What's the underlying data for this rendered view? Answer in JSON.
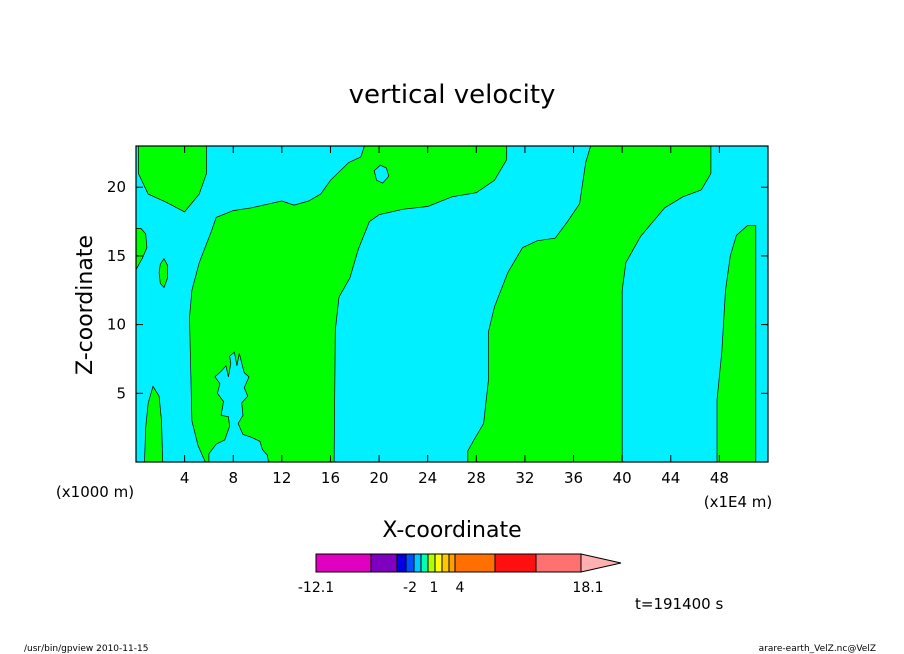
{
  "chart_data": {
    "type": "heatmap",
    "title": "vertical velocity",
    "xlabel": "X-coordinate",
    "ylabel": "Z-coordinate",
    "x_offset_label": "(x1000 m)",
    "x_scale_label": "(x1E4 m)",
    "xlim": [
      0,
      52
    ],
    "ylim": [
      0,
      23
    ],
    "xticks": [
      4,
      8,
      12,
      16,
      20,
      24,
      28,
      32,
      36,
      40,
      44,
      48
    ],
    "yticks": [
      5,
      10,
      15,
      20
    ],
    "background_color": "#00f0ff",
    "region_color": "#00ff00",
    "regions": [
      {
        "name": "green-band-left",
        "points": [
          [
            0.2,
            23
          ],
          [
            5.8,
            23
          ],
          [
            5.8,
            21
          ],
          [
            5.2,
            19.5
          ],
          [
            4,
            18.2
          ],
          [
            2.5,
            18.9
          ],
          [
            1,
            19.5
          ],
          [
            0.2,
            21
          ]
        ]
      },
      {
        "name": "green-band-1",
        "points": [
          [
            5.7,
            0
          ],
          [
            5.1,
            1.2
          ],
          [
            4.6,
            3
          ],
          [
            4.4,
            10.5
          ],
          [
            4.6,
            12.5
          ],
          [
            5.2,
            14.5
          ],
          [
            6.2,
            16.8
          ],
          [
            6.6,
            17.8
          ],
          [
            8,
            18.3
          ],
          [
            9.5,
            18.5
          ],
          [
            11,
            18.8
          ],
          [
            12,
            19.0
          ],
          [
            13,
            18.7
          ],
          [
            14.2,
            19.0
          ],
          [
            15.2,
            19.5
          ],
          [
            16,
            20.5
          ],
          [
            17.5,
            21.8
          ],
          [
            18.5,
            22.2
          ],
          [
            18.8,
            23
          ],
          [
            30.5,
            23
          ],
          [
            30.5,
            22
          ],
          [
            29.5,
            20.5
          ],
          [
            28,
            19.6
          ],
          [
            26,
            19.3
          ],
          [
            24,
            18.6
          ],
          [
            22,
            18.4
          ],
          [
            20,
            18.0
          ],
          [
            19.2,
            17.5
          ],
          [
            18.3,
            15.5
          ],
          [
            17.6,
            13.4
          ],
          [
            16.7,
            12.0
          ],
          [
            16.4,
            9.6
          ],
          [
            16.3,
            0
          ]
        ]
      },
      {
        "name": "green-band-2",
        "points": [
          [
            27.3,
            0
          ],
          [
            27.3,
            0.8
          ],
          [
            27.8,
            1.6
          ],
          [
            28.6,
            2.8
          ],
          [
            29,
            6
          ],
          [
            29,
            9.5
          ],
          [
            29.5,
            11.3
          ],
          [
            30.6,
            13.8
          ],
          [
            31.8,
            15.6
          ],
          [
            33,
            16.1
          ],
          [
            34.5,
            16.3
          ],
          [
            35.5,
            17.5
          ],
          [
            36.5,
            18.8
          ],
          [
            37,
            21.8
          ],
          [
            37.4,
            23
          ],
          [
            47.3,
            23
          ],
          [
            47.3,
            21
          ],
          [
            46.5,
            19.8
          ],
          [
            45,
            19.3
          ],
          [
            43.5,
            18.5
          ],
          [
            41.5,
            16.4
          ],
          [
            40.3,
            14.5
          ],
          [
            40,
            12.5
          ],
          [
            40,
            0
          ]
        ]
      },
      {
        "name": "green-band-3",
        "points": [
          [
            47.8,
            0
          ],
          [
            47.8,
            4.5
          ],
          [
            48.2,
            8
          ],
          [
            48.5,
            12.5
          ],
          [
            48.9,
            15
          ],
          [
            49.4,
            16.5
          ],
          [
            50.3,
            17.2
          ],
          [
            51,
            17.2
          ],
          [
            51,
            0
          ]
        ]
      },
      {
        "name": "green-strip-bottom-left",
        "points": [
          [
            0.7,
            0
          ],
          [
            0.8,
            2.5
          ],
          [
            1.0,
            4.3
          ],
          [
            1.4,
            5.5
          ],
          [
            1.9,
            4.8
          ],
          [
            2.1,
            3
          ],
          [
            2.2,
            0
          ]
        ]
      },
      {
        "name": "green-blob-left-edge",
        "points": [
          [
            0,
            14
          ],
          [
            0.5,
            14.8
          ],
          [
            0.9,
            15.6
          ],
          [
            0.8,
            16.6
          ],
          [
            0.4,
            17.0
          ],
          [
            0,
            17.0
          ]
        ]
      },
      {
        "name": "green-blob-small",
        "points": [
          [
            2,
            13
          ],
          [
            2.3,
            12.7
          ],
          [
            2.6,
            13.4
          ],
          [
            2.6,
            14.3
          ],
          [
            2.3,
            14.8
          ],
          [
            2,
            14.4
          ],
          [
            1.9,
            13.8
          ]
        ]
      }
    ],
    "holes": [
      {
        "name": "cyan-patch-20-21",
        "points": [
          [
            19.6,
            21.2
          ],
          [
            20.1,
            21.6
          ],
          [
            20.6,
            21.4
          ],
          [
            20.8,
            20.8
          ],
          [
            20.3,
            20.3
          ],
          [
            19.8,
            20.5
          ]
        ]
      },
      {
        "name": "cyan-plume-8",
        "points": [
          [
            6.0,
            0
          ],
          [
            6.0,
            0.6
          ],
          [
            6.6,
            1.3
          ],
          [
            7.3,
            1.6
          ],
          [
            7.7,
            2.6
          ],
          [
            7.6,
            3.3
          ],
          [
            7.0,
            3.4
          ],
          [
            7.2,
            4.4
          ],
          [
            6.7,
            5.0
          ],
          [
            6.9,
            5.7
          ],
          [
            6.5,
            6.2
          ],
          [
            7.0,
            6.6
          ],
          [
            7.4,
            7.0
          ],
          [
            7.6,
            6.2
          ],
          [
            7.8,
            7.2
          ],
          [
            7.7,
            7.7
          ],
          [
            8.1,
            8.0
          ],
          [
            8.3,
            7.0
          ],
          [
            8.5,
            7.9
          ],
          [
            8.9,
            6.5
          ],
          [
            9.3,
            6.2
          ],
          [
            8.9,
            5.4
          ],
          [
            9.2,
            4.8
          ],
          [
            8.7,
            4.3
          ],
          [
            8.8,
            3.4
          ],
          [
            8.4,
            2.8
          ],
          [
            8.8,
            2.0
          ],
          [
            9.5,
            1.8
          ],
          [
            10.2,
            1.5
          ],
          [
            10.4,
            0.9
          ],
          [
            10.8,
            0.5
          ],
          [
            10.9,
            0
          ]
        ]
      }
    ],
    "colorbar": {
      "labels": [
        "-12.1",
        "-2",
        "1",
        "4",
        "18.1"
      ],
      "colors": [
        "#e000c0",
        "#8000c0",
        "#0000e0",
        "#0050ff",
        "#00c8ff",
        "#00ffb0",
        "#b0ff00",
        "#ffff00",
        "#ffc800",
        "#ffa000",
        "#ff7000",
        "#ff1010",
        "#ff7070",
        "#ffb0b0"
      ]
    }
  },
  "footer": {
    "time_label": "t=191400 s",
    "left_note": "/usr/bin/gpview   2010-11-15",
    "right_note": "arare-earth_VelZ.nc@VelZ"
  }
}
